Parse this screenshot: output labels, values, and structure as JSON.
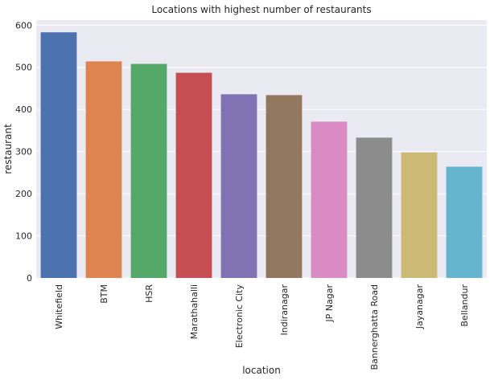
{
  "chart_data": {
    "type": "bar",
    "title": "Locations with highest number of restaurants",
    "xlabel": "location",
    "ylabel": "restaurant",
    "categories": [
      "Whitefield",
      "BTM",
      "HSR",
      "Marathahalli",
      "Electronic City",
      "Indiranagar",
      "JP Nagar",
      "Bannerghatta Road",
      "Jayanagar",
      "Bellandur"
    ],
    "values": [
      583,
      514,
      508,
      487,
      436,
      434,
      371,
      333,
      298,
      264
    ],
    "colors": [
      "#4c72b0",
      "#dd8452",
      "#55a868",
      "#c44e52",
      "#8172b3",
      "#937860",
      "#da8bc3",
      "#8c8c8c",
      "#ccb974",
      "#64b5cd"
    ],
    "ylim": [
      0,
      612
    ],
    "yticks": [
      0,
      100,
      200,
      300,
      400,
      500,
      600
    ],
    "grid": true,
    "background": "#eaeaf2",
    "grid_color": "#ffffff"
  }
}
